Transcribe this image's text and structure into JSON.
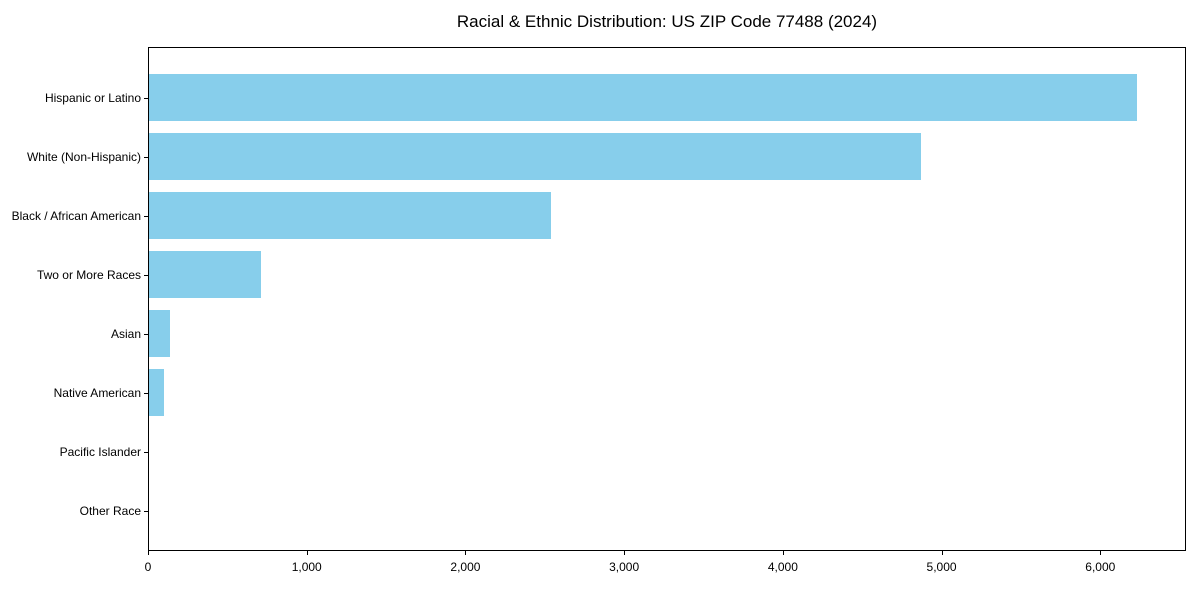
{
  "chart_data": {
    "type": "bar",
    "orientation": "horizontal",
    "title": "Racial & Ethnic Distribution: US ZIP Code 77488 (2024)",
    "categories": [
      "Hispanic or Latino",
      "White (Non-Hispanic)",
      "Black / African American",
      "Two or More Races",
      "Asian",
      "Native American",
      "Pacific Islander",
      "Other Race"
    ],
    "values": [
      6225,
      4865,
      2535,
      705,
      130,
      95,
      0,
      0
    ],
    "xlabel": "",
    "ylabel": "",
    "xlim": [
      0,
      6540
    ],
    "x_ticks": [
      0,
      1000,
      2000,
      3000,
      4000,
      5000,
      6000
    ],
    "x_tick_labels": [
      "0",
      "1,000",
      "2,000",
      "3,000",
      "4,000",
      "5,000",
      "6,000"
    ],
    "bar_color": "#87CEEB",
    "grid": false,
    "legend_position": "none"
  }
}
